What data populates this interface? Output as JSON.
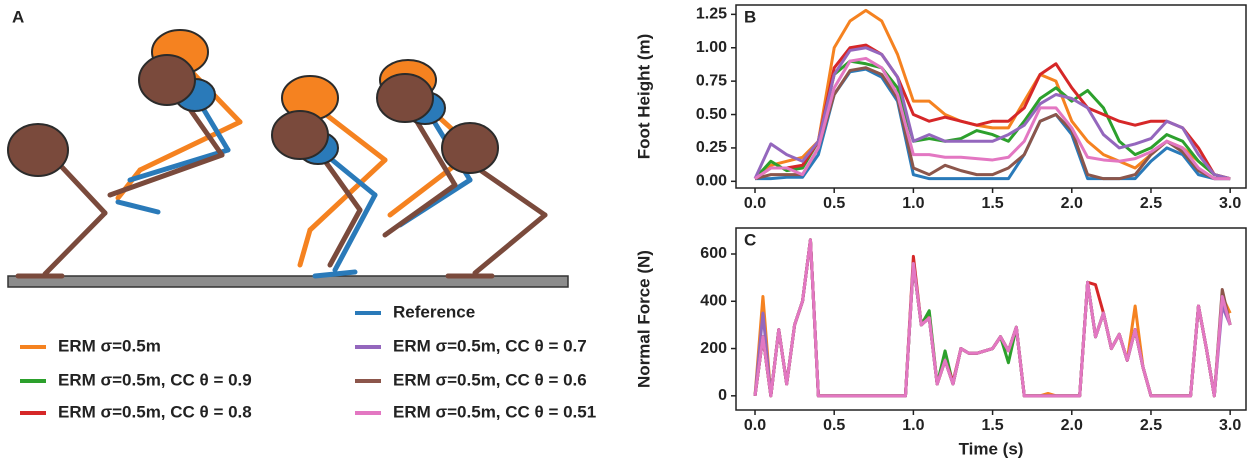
{
  "diagram": {
    "panel": "A"
  },
  "chart_data": [
    {
      "type": "line",
      "panel": "B",
      "ylabel": "Foot Height (m)",
      "x": [
        0.0,
        0.1,
        0.2,
        0.3,
        0.4,
        0.5,
        0.6,
        0.7,
        0.8,
        0.9,
        1.0,
        1.1,
        1.2,
        1.3,
        1.4,
        1.5,
        1.6,
        1.7,
        1.8,
        1.9,
        2.0,
        2.1,
        2.2,
        2.3,
        2.4,
        2.5,
        2.6,
        2.7,
        2.8,
        2.9,
        3.0
      ],
      "xlim": [
        -0.12,
        3.1
      ],
      "xticks": [
        {
          "value": 0,
          "label": "0.0"
        },
        {
          "value": 0.5,
          "label": "0.5"
        },
        {
          "value": 1,
          "label": "1.0"
        },
        {
          "value": 1.5,
          "label": "1.5"
        },
        {
          "value": 2,
          "label": "2.0"
        },
        {
          "value": 2.5,
          "label": "2.5"
        },
        {
          "value": 3,
          "label": "3.0"
        }
      ],
      "ylim": [
        -0.05,
        1.32
      ],
      "yticks": [
        {
          "value": 0,
          "label": "0.00"
        },
        {
          "value": 0.25,
          "label": "0.25"
        },
        {
          "value": 0.5,
          "label": "0.50"
        },
        {
          "value": 0.75,
          "label": "0.75"
        },
        {
          "value": 1,
          "label": "1.00"
        },
        {
          "value": 1.25,
          "label": "1.25"
        }
      ],
      "series": [
        {
          "name": "Reference",
          "color": "#2a7ab9",
          "values": [
            0.02,
            0.02,
            0.03,
            0.03,
            0.2,
            0.65,
            0.82,
            0.84,
            0.78,
            0.6,
            0.05,
            0.02,
            0.02,
            0.02,
            0.02,
            0.02,
            0.02,
            0.2,
            0.45,
            0.5,
            0.35,
            0.02,
            0.02,
            0.02,
            0.02,
            0.15,
            0.25,
            0.2,
            0.05,
            0.02,
            0.02
          ]
        },
        {
          "name": "ERM σ=0.5m",
          "color": "#f58220",
          "values": [
            0.02,
            0.12,
            0.15,
            0.18,
            0.3,
            1.0,
            1.2,
            1.28,
            1.2,
            0.95,
            0.6,
            0.6,
            0.5,
            0.45,
            0.42,
            0.4,
            0.4,
            0.6,
            0.8,
            0.75,
            0.45,
            0.3,
            0.2,
            0.15,
            0.1,
            0.2,
            0.3,
            0.25,
            0.15,
            0.05,
            0.02
          ]
        },
        {
          "name": "ERM σ=0.5m, CC θ = 0.9",
          "color": "#2ca02c",
          "values": [
            0.02,
            0.15,
            0.08,
            0.1,
            0.3,
            0.8,
            0.9,
            0.88,
            0.85,
            0.7,
            0.3,
            0.32,
            0.3,
            0.32,
            0.38,
            0.35,
            0.3,
            0.45,
            0.62,
            0.7,
            0.6,
            0.68,
            0.55,
            0.3,
            0.2,
            0.25,
            0.35,
            0.3,
            0.15,
            0.05,
            0.02
          ]
        },
        {
          "name": "ERM σ=0.5m, CC θ = 0.8",
          "color": "#d62728",
          "values": [
            0.02,
            0.1,
            0.1,
            0.12,
            0.3,
            0.85,
            1.0,
            1.02,
            0.95,
            0.78,
            0.5,
            0.45,
            0.48,
            0.45,
            0.42,
            0.45,
            0.45,
            0.55,
            0.8,
            0.88,
            0.7,
            0.55,
            0.5,
            0.45,
            0.42,
            0.45,
            0.45,
            0.4,
            0.25,
            0.05,
            0.02
          ]
        },
        {
          "name": "ERM σ=0.5m, CC θ = 0.7",
          "color": "#9467bd",
          "values": [
            0.02,
            0.28,
            0.2,
            0.15,
            0.3,
            0.8,
            0.98,
            1.0,
            0.95,
            0.78,
            0.3,
            0.35,
            0.3,
            0.3,
            0.3,
            0.3,
            0.35,
            0.42,
            0.58,
            0.65,
            0.62,
            0.55,
            0.35,
            0.25,
            0.28,
            0.32,
            0.45,
            0.4,
            0.2,
            0.05,
            0.02
          ]
        },
        {
          "name": "ERM σ=0.5m, CC θ = 0.6",
          "color": "#8c564b",
          "values": [
            0.02,
            0.05,
            0.05,
            0.05,
            0.25,
            0.65,
            0.83,
            0.85,
            0.8,
            0.62,
            0.1,
            0.05,
            0.12,
            0.08,
            0.05,
            0.05,
            0.1,
            0.2,
            0.45,
            0.5,
            0.38,
            0.05,
            0.02,
            0.02,
            0.05,
            0.2,
            0.3,
            0.22,
            0.08,
            0.02,
            0.02
          ]
        },
        {
          "name": "ERM σ=0.5m, CC θ = 0.51",
          "color": "#e377c2",
          "values": [
            0.02,
            0.1,
            0.1,
            0.05,
            0.25,
            0.7,
            0.9,
            0.92,
            0.85,
            0.65,
            0.2,
            0.2,
            0.18,
            0.18,
            0.17,
            0.16,
            0.18,
            0.3,
            0.55,
            0.55,
            0.4,
            0.18,
            0.16,
            0.15,
            0.17,
            0.22,
            0.3,
            0.25,
            0.1,
            0.02,
            0.02
          ]
        }
      ]
    },
    {
      "type": "line",
      "panel": "C",
      "ylabel": "Normal Force (N)",
      "xlabel": "Time (s)",
      "x": [
        0.0,
        0.05,
        0.1,
        0.15,
        0.2,
        0.25,
        0.3,
        0.35,
        0.4,
        0.45,
        0.5,
        0.55,
        0.6,
        0.65,
        0.7,
        0.75,
        0.8,
        0.85,
        0.9,
        0.95,
        1.0,
        1.05,
        1.1,
        1.15,
        1.2,
        1.25,
        1.3,
        1.35,
        1.4,
        1.45,
        1.5,
        1.55,
        1.6,
        1.65,
        1.7,
        1.75,
        1.8,
        1.85,
        1.9,
        1.95,
        2.0,
        2.05,
        2.1,
        2.15,
        2.2,
        2.25,
        2.3,
        2.35,
        2.4,
        2.45,
        2.5,
        2.55,
        2.6,
        2.65,
        2.7,
        2.75,
        2.8,
        2.85,
        2.9,
        2.95,
        3.0
      ],
      "xlim": [
        -0.12,
        3.1
      ],
      "xticks": [
        {
          "value": 0,
          "label": "0.0"
        },
        {
          "value": 0.5,
          "label": "0.5"
        },
        {
          "value": 1,
          "label": "1.0"
        },
        {
          "value": 1.5,
          "label": "1.5"
        },
        {
          "value": 2,
          "label": "2.0"
        },
        {
          "value": 2.5,
          "label": "2.5"
        },
        {
          "value": 3,
          "label": "3.0"
        }
      ],
      "ylim": [
        -60,
        710
      ],
      "yticks": [
        0,
        200,
        400,
        600
      ],
      "series": [
        {
          "color": "#2a7ab9",
          "values": [
            0,
            250,
            0,
            280,
            50,
            300,
            400,
            660,
            0,
            0,
            0,
            0,
            0,
            0,
            0,
            0,
            0,
            0,
            0,
            0,
            560,
            300,
            330,
            50,
            150,
            50,
            200,
            180,
            180,
            190,
            200,
            250,
            190,
            290,
            0,
            0,
            0,
            0,
            0,
            0,
            0,
            0,
            480,
            250,
            350,
            200,
            260,
            150,
            280,
            120,
            0,
            0,
            0,
            0,
            0,
            0,
            380,
            200,
            0,
            420,
            300
          ]
        },
        {
          "color": "#f58220",
          "values": [
            0,
            420,
            0,
            280,
            50,
            300,
            400,
            660,
            0,
            0,
            0,
            0,
            0,
            0,
            0,
            0,
            0,
            0,
            0,
            0,
            560,
            300,
            350,
            50,
            150,
            50,
            200,
            180,
            180,
            190,
            200,
            250,
            190,
            290,
            0,
            0,
            0,
            10,
            0,
            0,
            0,
            0,
            480,
            250,
            350,
            200,
            260,
            150,
            380,
            120,
            0,
            0,
            0,
            0,
            0,
            0,
            380,
            200,
            0,
            420,
            350
          ]
        },
        {
          "color": "#2ca02c",
          "values": [
            0,
            250,
            0,
            280,
            50,
            300,
            400,
            660,
            0,
            0,
            0,
            0,
            0,
            0,
            0,
            0,
            0,
            0,
            0,
            0,
            560,
            300,
            360,
            50,
            190,
            50,
            200,
            180,
            180,
            190,
            200,
            250,
            140,
            290,
            0,
            0,
            0,
            0,
            0,
            0,
            0,
            0,
            480,
            250,
            350,
            200,
            260,
            150,
            280,
            120,
            0,
            0,
            0,
            0,
            0,
            0,
            380,
            200,
            0,
            420,
            300
          ]
        },
        {
          "color": "#d62728",
          "values": [
            0,
            250,
            0,
            280,
            50,
            300,
            400,
            660,
            0,
            0,
            0,
            0,
            0,
            0,
            0,
            0,
            0,
            0,
            0,
            0,
            590,
            300,
            330,
            50,
            150,
            60,
            200,
            180,
            180,
            190,
            200,
            250,
            190,
            290,
            0,
            0,
            0,
            0,
            0,
            0,
            0,
            0,
            480,
            470,
            350,
            200,
            260,
            150,
            280,
            120,
            0,
            0,
            0,
            0,
            0,
            0,
            380,
            200,
            0,
            420,
            300
          ]
        },
        {
          "color": "#9467bd",
          "values": [
            0,
            350,
            0,
            280,
            50,
            300,
            400,
            660,
            0,
            0,
            0,
            0,
            0,
            0,
            0,
            0,
            0,
            0,
            0,
            0,
            560,
            300,
            330,
            50,
            150,
            50,
            200,
            180,
            180,
            190,
            200,
            250,
            190,
            290,
            0,
            0,
            0,
            0,
            0,
            0,
            0,
            0,
            480,
            250,
            350,
            200,
            260,
            150,
            280,
            120,
            0,
            0,
            0,
            0,
            0,
            0,
            380,
            200,
            0,
            380,
            300
          ]
        },
        {
          "color": "#8c564b",
          "values": [
            0,
            250,
            0,
            280,
            50,
            300,
            400,
            660,
            0,
            0,
            0,
            0,
            0,
            0,
            0,
            0,
            0,
            0,
            0,
            0,
            560,
            300,
            330,
            50,
            150,
            50,
            200,
            180,
            180,
            190,
            200,
            250,
            190,
            290,
            0,
            0,
            0,
            0,
            0,
            0,
            0,
            0,
            480,
            250,
            350,
            200,
            260,
            150,
            280,
            120,
            0,
            0,
            0,
            0,
            0,
            0,
            380,
            200,
            0,
            450,
            300
          ]
        },
        {
          "color": "#e377c2",
          "values": [
            0,
            250,
            0,
            280,
            50,
            300,
            400,
            660,
            0,
            0,
            0,
            0,
            0,
            0,
            0,
            0,
            0,
            0,
            0,
            0,
            560,
            300,
            330,
            50,
            150,
            50,
            200,
            180,
            180,
            190,
            200,
            250,
            190,
            290,
            0,
            0,
            0,
            0,
            0,
            0,
            0,
            0,
            480,
            250,
            350,
            200,
            260,
            150,
            280,
            120,
            0,
            0,
            0,
            0,
            0,
            0,
            380,
            200,
            0,
            420,
            300
          ]
        }
      ]
    }
  ]
}
